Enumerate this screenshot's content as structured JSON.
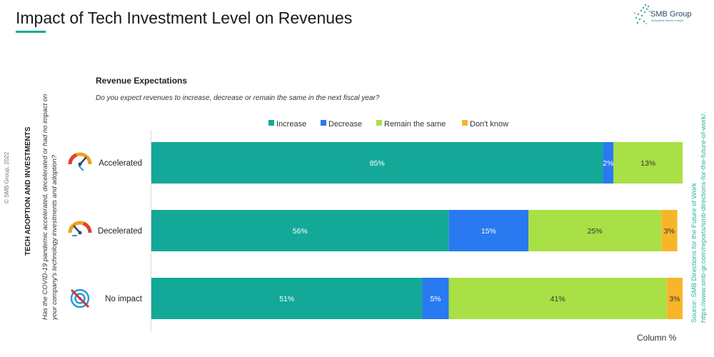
{
  "title": "Impact of Tech Investment Level on Revenues",
  "logo": {
    "name": "SMB Group",
    "tagline": "Actionable Market Insight"
  },
  "copyright": "© SMB Group, 2022",
  "side_title": "TECH ADOPTION AND INVESTMENTS",
  "side_question": "Has the COVID-19 pandemic accelerated, decelerated or had no impact on your company's technology investments and adoption?",
  "source_line1": "Source: SMB Directions for the Future of Work",
  "source_line2": "https://www.smb-gr.com/reports/smb-directions-for-the-future-of-work/.",
  "footer_note": "Column %",
  "chart_data": {
    "type": "bar",
    "orientation": "horizontal",
    "stacked": true,
    "subtitle": "Revenue Expectations",
    "question": "Do you expect revenues to increase, decrease or remain the same in the next fiscal year?",
    "categories": [
      "Accelerated",
      "Decelerated",
      "No impact"
    ],
    "category_icons": [
      "speedometer-fast-icon",
      "speedometer-slow-icon",
      "target-crossed-icon"
    ],
    "series": [
      {
        "name": "Increase",
        "color": "#14a898",
        "values": [
          85,
          56,
          51
        ]
      },
      {
        "name": "Decrease",
        "color": "#2979f0",
        "values": [
          2,
          15,
          5
        ]
      },
      {
        "name": "Remain the same",
        "color": "#a8e045",
        "values": [
          13,
          25,
          41
        ]
      },
      {
        "name": "Don't know",
        "color": "#f7b62a",
        "values": [
          0,
          3,
          3
        ]
      }
    ],
    "data_labels": [
      [
        "85%",
        "2%",
        "13%",
        ""
      ],
      [
        "56%",
        "15%",
        "25%",
        "3%"
      ],
      [
        "51%",
        "5%",
        "41%",
        "3%"
      ]
    ],
    "legend_position": "top",
    "grid": false
  }
}
